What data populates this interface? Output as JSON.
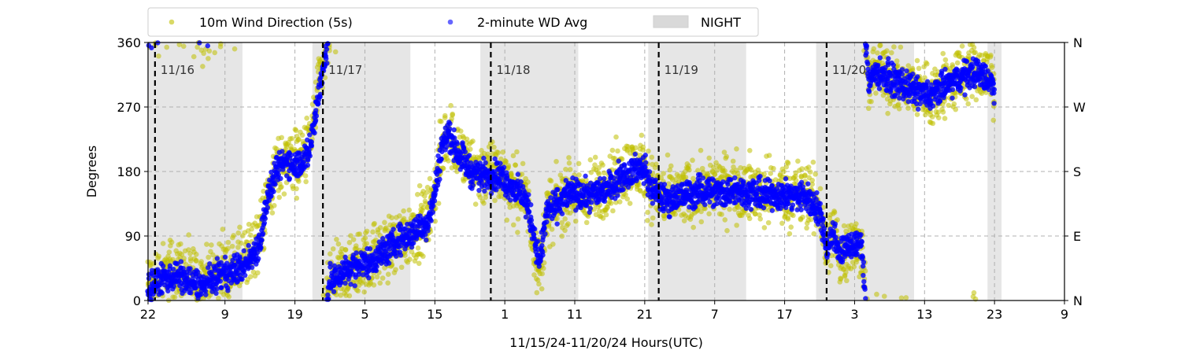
{
  "chart_data": {
    "type": "scatter",
    "xlabel": "11/15/24-11/20/24  Hours(UTC)",
    "ylabel": "Degrees",
    "x_range_hours": [
      0,
      131
    ],
    "ylim": [
      0,
      360
    ],
    "x_ticks": [
      {
        "h": 0,
        "label": "22"
      },
      {
        "h": 11,
        "label": "9"
      },
      {
        "h": 21,
        "label": "19"
      },
      {
        "h": 31,
        "label": "5"
      },
      {
        "h": 41,
        "label": "15"
      },
      {
        "h": 51,
        "label": "1"
      },
      {
        "h": 61,
        "label": "11"
      },
      {
        "h": 71,
        "label": "21"
      },
      {
        "h": 81,
        "label": "7"
      },
      {
        "h": 91,
        "label": "17"
      },
      {
        "h": 101,
        "label": "3"
      },
      {
        "h": 111,
        "label": "13"
      },
      {
        "h": 121,
        "label": "23"
      },
      {
        "h": 131,
        "label": "9"
      }
    ],
    "y_ticks": [
      0,
      90,
      180,
      270,
      360
    ],
    "y_ticks_right": [
      {
        "v": 0,
        "label": "N"
      },
      {
        "v": 90,
        "label": "E"
      },
      {
        "v": 180,
        "label": "S"
      },
      {
        "v": 270,
        "label": "W"
      },
      {
        "v": 360,
        "label": "N"
      }
    ],
    "grid": true,
    "legend_position": "top, above plot",
    "legend": [
      {
        "name": "10m Wind Direction (5s)",
        "color": "#bfbf00",
        "marker": "dot"
      },
      {
        "name": "2-minute WD Avg",
        "color": "#0000ff",
        "marker": "dot"
      },
      {
        "name": "NIGHT",
        "color": "#d9d9d9",
        "marker": "patch"
      }
    ],
    "day_markers": [
      {
        "h": 1,
        "label": "11/16"
      },
      {
        "h": 25,
        "label": "11/17"
      },
      {
        "h": 49,
        "label": "11/18"
      },
      {
        "h": 73,
        "label": "11/19"
      },
      {
        "h": 97,
        "label": "11/20"
      }
    ],
    "night_spans_hours": [
      [
        0,
        13.5
      ],
      [
        23.5,
        37.5
      ],
      [
        47.5,
        61.5
      ],
      [
        71.5,
        85.5
      ],
      [
        95.5,
        109.5
      ],
      [
        120,
        122
      ]
    ],
    "series": [
      {
        "name": "10m Wind Direction (5s)",
        "color": "#bfbf00",
        "track": [
          [
            0,
            20
          ],
          [
            2,
            35
          ],
          [
            4,
            45
          ],
          [
            6,
            30
          ],
          [
            8,
            25
          ],
          [
            10,
            40
          ],
          [
            12,
            45
          ],
          [
            14,
            55
          ],
          [
            16,
            90
          ],
          [
            17,
            140
          ],
          [
            18,
            170
          ],
          [
            19,
            190
          ],
          [
            20,
            200
          ],
          [
            21,
            195
          ],
          [
            22,
            200
          ],
          [
            23,
            210
          ],
          [
            24,
            270
          ],
          [
            25,
            325
          ],
          [
            26,
            20
          ],
          [
            28,
            40
          ],
          [
            30,
            50
          ],
          [
            32,
            60
          ],
          [
            34,
            70
          ],
          [
            36,
            85
          ],
          [
            38,
            100
          ],
          [
            40,
            115
          ],
          [
            41,
            150
          ],
          [
            42,
            210
          ],
          [
            43,
            240
          ],
          [
            44,
            215
          ],
          [
            45,
            200
          ],
          [
            46,
            185
          ],
          [
            48,
            175
          ],
          [
            50,
            180
          ],
          [
            52,
            160
          ],
          [
            54,
            145
          ],
          [
            55,
            90
          ],
          [
            56,
            40
          ],
          [
            57,
            120
          ],
          [
            58,
            130
          ],
          [
            60,
            150
          ],
          [
            62,
            145
          ],
          [
            64,
            150
          ],
          [
            66,
            165
          ],
          [
            68,
            180
          ],
          [
            70,
            185
          ],
          [
            71,
            180
          ],
          [
            72,
            160
          ],
          [
            74,
            140
          ],
          [
            76,
            145
          ],
          [
            78,
            150
          ],
          [
            80,
            160
          ],
          [
            82,
            155
          ],
          [
            84,
            160
          ],
          [
            86,
            155
          ],
          [
            88,
            150
          ],
          [
            90,
            150
          ],
          [
            92,
            150
          ],
          [
            94,
            148
          ],
          [
            96,
            130
          ],
          [
            97,
            70
          ],
          [
            98,
            100
          ],
          [
            99,
            60
          ],
          [
            100,
            80
          ],
          [
            101,
            75
          ],
          [
            102,
            80
          ],
          [
            103,
            300
          ],
          [
            104,
            325
          ],
          [
            106,
            310
          ],
          [
            108,
            305
          ],
          [
            110,
            295
          ],
          [
            112,
            285
          ],
          [
            114,
            300
          ],
          [
            116,
            310
          ],
          [
            118,
            325
          ],
          [
            120,
            310
          ],
          [
            121,
            300
          ]
        ]
      },
      {
        "name": "2-minute WD Avg",
        "color": "#0000ff",
        "track": [
          [
            0,
            15
          ],
          [
            2,
            30
          ],
          [
            4,
            35
          ],
          [
            6,
            25
          ],
          [
            8,
            20
          ],
          [
            10,
            35
          ],
          [
            12,
            40
          ],
          [
            14,
            50
          ],
          [
            16,
            80
          ],
          [
            17,
            140
          ],
          [
            18,
            170
          ],
          [
            19,
            190
          ],
          [
            20,
            195
          ],
          [
            21,
            190
          ],
          [
            22,
            195
          ],
          [
            23,
            205
          ],
          [
            24,
            265
          ],
          [
            25,
            320
          ],
          [
            26,
            25
          ],
          [
            28,
            40
          ],
          [
            30,
            50
          ],
          [
            32,
            55
          ],
          [
            34,
            70
          ],
          [
            36,
            85
          ],
          [
            38,
            95
          ],
          [
            40,
            110
          ],
          [
            41,
            150
          ],
          [
            42,
            215
          ],
          [
            43,
            235
          ],
          [
            44,
            210
          ],
          [
            45,
            200
          ],
          [
            46,
            180
          ],
          [
            48,
            175
          ],
          [
            50,
            175
          ],
          [
            52,
            160
          ],
          [
            54,
            140
          ],
          [
            55,
            100
          ],
          [
            56,
            50
          ],
          [
            57,
            125
          ],
          [
            58,
            130
          ],
          [
            60,
            150
          ],
          [
            62,
            145
          ],
          [
            64,
            150
          ],
          [
            66,
            160
          ],
          [
            68,
            175
          ],
          [
            70,
            185
          ],
          [
            71,
            180
          ],
          [
            72,
            155
          ],
          [
            74,
            140
          ],
          [
            76,
            145
          ],
          [
            78,
            150
          ],
          [
            80,
            155
          ],
          [
            82,
            150
          ],
          [
            84,
            155
          ],
          [
            86,
            150
          ],
          [
            88,
            148
          ],
          [
            90,
            148
          ],
          [
            92,
            145
          ],
          [
            94,
            145
          ],
          [
            96,
            125
          ],
          [
            97,
            75
          ],
          [
            98,
            95
          ],
          [
            99,
            65
          ],
          [
            100,
            80
          ],
          [
            101,
            75
          ],
          [
            102,
            80
          ],
          [
            103,
            305
          ],
          [
            104,
            320
          ],
          [
            106,
            310
          ],
          [
            108,
            300
          ],
          [
            110,
            290
          ],
          [
            112,
            285
          ],
          [
            114,
            300
          ],
          [
            116,
            310
          ],
          [
            118,
            320
          ],
          [
            120,
            310
          ],
          [
            121,
            295
          ]
        ]
      }
    ]
  }
}
